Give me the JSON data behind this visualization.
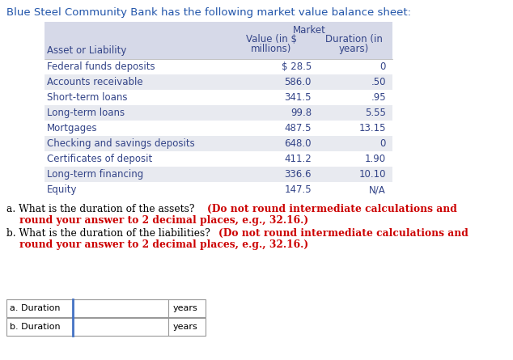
{
  "title": "Blue Steel Community Bank has the following market value balance sheet:",
  "col_header": "Asset or Liability",
  "header_line1": "Market",
  "header_line2_col1": "Value (in $  Duration (in",
  "header_line3_col1": "millions)",
  "header_line3_col2": "years)",
  "rows": [
    [
      "Federal funds deposits",
      "$ 28.5",
      "0"
    ],
    [
      "Accounts receivable",
      "586.0",
      ".50"
    ],
    [
      "Short-term loans",
      "341.5",
      ".95"
    ],
    [
      "Long-term loans",
      "99.8",
      "5.55"
    ],
    [
      "Mortgages",
      "487.5",
      "13.15"
    ],
    [
      "Checking and savings deposits",
      "648.0",
      "0"
    ],
    [
      "Certificates of deposit",
      "411.2",
      "1.90"
    ],
    [
      "Long-term financing",
      "336.6",
      "10.10"
    ],
    [
      "Equity",
      "147.5",
      "N/A"
    ]
  ],
  "header_bg": "#d6d9e8",
  "row_bg_even": "#e8eaf0",
  "row_bg_odd": "#ffffff",
  "title_color": "#2255aa",
  "table_text_color": "#334488",
  "question_normal_color": "#000000",
  "question_bold_color": "#cc0000",
  "answer_labels": [
    "a. Duration",
    "b. Duration"
  ],
  "answer_suffix": "years",
  "input_border_color": "#4472c4",
  "box_border_color": "#999999"
}
